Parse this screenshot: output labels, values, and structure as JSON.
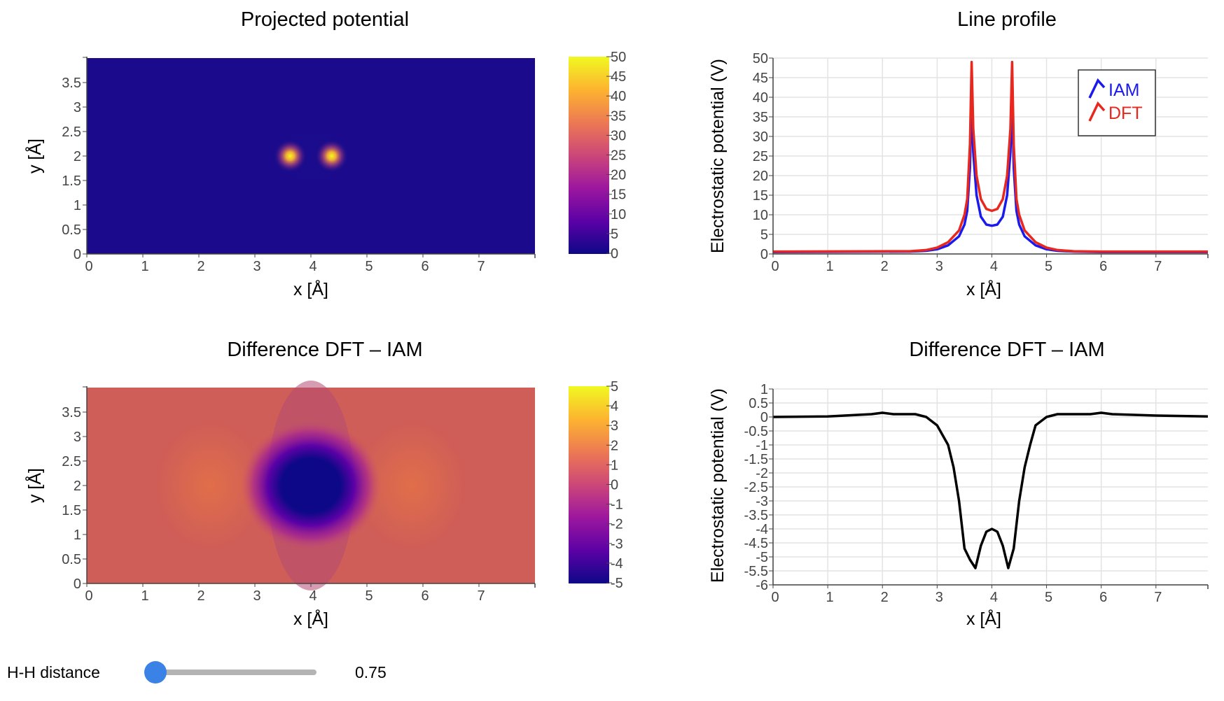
{
  "colors": {
    "iam": "#1a1aee",
    "dft": "#e8281e",
    "diff_line": "#000000",
    "grid": "#e3e3e3",
    "slider_track": "#b4b4b4",
    "slider_knob": "#3b82e6",
    "plasma_scale": [
      "#0d0887",
      "#5c01a6",
      "#9c179e",
      "#cc4778",
      "#ed7953",
      "#fdb42f",
      "#f0f921"
    ]
  },
  "slider": {
    "label": "H-H distance",
    "value": "0.75",
    "fraction": 0.0
  },
  "chart_data": [
    {
      "type": "heatmap",
      "title": "Projected potential",
      "xlabel": "x [Å]",
      "ylabel": "y [Å]",
      "xlim": [
        0,
        8
      ],
      "ylim": [
        0,
        4
      ],
      "xticks": [
        "0",
        "1",
        "2",
        "3",
        "4",
        "5",
        "6",
        "7"
      ],
      "yticks": [
        "0",
        "0.5",
        "1",
        "1.5",
        "2",
        "2.5",
        "3",
        "3.5"
      ],
      "colorbar": {
        "min": 0,
        "max": 50,
        "ticks": [
          "0",
          "5",
          "10",
          "15",
          "20",
          "25",
          "30",
          "35",
          "40",
          "45",
          "50"
        ]
      },
      "background_value": 1.5,
      "peaks": [
        {
          "x": 3.63,
          "y": 2.0,
          "value": 50
        },
        {
          "x": 4.37,
          "y": 2.0,
          "value": 50
        }
      ]
    },
    {
      "type": "line",
      "title": "Line profile",
      "xlabel": "x [Å]",
      "ylabel": "Electrostatic potential (V)",
      "xlim": [
        0,
        7.95
      ],
      "ylim": [
        0,
        50
      ],
      "xticks": [
        "0",
        "1",
        "2",
        "3",
        "4",
        "5",
        "6",
        "7"
      ],
      "yticks": [
        "0",
        "5",
        "10",
        "15",
        "20",
        "25",
        "30",
        "35",
        "40",
        "45",
        "50"
      ],
      "grid": true,
      "legend_position": "top-right",
      "series": [
        {
          "name": "IAM",
          "x": [
            0,
            2.5,
            2.8,
            3.0,
            3.2,
            3.4,
            3.5,
            3.55,
            3.6,
            3.63,
            3.66,
            3.72,
            3.8,
            3.9,
            4.0,
            4.1,
            4.2,
            4.28,
            4.34,
            4.37,
            4.4,
            4.45,
            4.5,
            4.6,
            4.8,
            5.0,
            5.2,
            5.5,
            6,
            7.95
          ],
          "y": [
            0.5,
            0.6,
            0.8,
            1.2,
            2.2,
            4.5,
            7.5,
            11,
            22,
            40,
            26,
            15,
            9.5,
            7.5,
            7.2,
            7.5,
            9.5,
            15,
            26,
            40,
            22,
            11,
            7.5,
            4.5,
            2.2,
            1.2,
            0.8,
            0.6,
            0.5,
            0.5
          ]
        },
        {
          "name": "DFT",
          "x": [
            0,
            2.5,
            2.8,
            3.0,
            3.2,
            3.4,
            3.5,
            3.55,
            3.6,
            3.63,
            3.66,
            3.72,
            3.8,
            3.9,
            4.0,
            4.1,
            4.2,
            4.28,
            4.34,
            4.37,
            4.4,
            4.45,
            4.5,
            4.6,
            4.8,
            5.0,
            5.2,
            5.5,
            6,
            7.95
          ],
          "y": [
            0.6,
            0.7,
            1.0,
            1.6,
            3.0,
            6.0,
            10,
            14,
            28,
            49,
            32,
            20,
            14,
            11.5,
            11,
            11.5,
            14,
            20,
            32,
            49,
            28,
            14,
            10,
            6.0,
            3.0,
            1.6,
            1.0,
            0.7,
            0.6,
            0.6
          ]
        }
      ]
    },
    {
      "type": "heatmap",
      "title": "Difference DFT – IAM",
      "xlabel": "x [Å]",
      "ylabel": "y [Å]",
      "xlim": [
        0,
        8
      ],
      "ylim": [
        0,
        4
      ],
      "xticks": [
        "0",
        "1",
        "2",
        "3",
        "4",
        "5",
        "6",
        "7"
      ],
      "yticks": [
        "0",
        "0.5",
        "1",
        "1.5",
        "2",
        "2.5",
        "3",
        "3.5"
      ],
      "colorbar": {
        "min": -5,
        "max": 5,
        "ticks": [
          "-5",
          "-4",
          "-3",
          "-2",
          "-1",
          "0",
          "1",
          "2",
          "3",
          "4",
          "5"
        ]
      },
      "background_value": 0.3,
      "dip": {
        "x": 4.0,
        "y": 2.0,
        "value": -5
      },
      "lobes": [
        {
          "x": 2.2,
          "y": 2.0,
          "value": 0.8
        },
        {
          "x": 5.8,
          "y": 2.0,
          "value": 0.8
        }
      ]
    },
    {
      "type": "line",
      "title": "Difference DFT – IAM",
      "xlabel": "x [Å]",
      "ylabel": "Electrostatic potential (V)",
      "xlim": [
        0,
        7.95
      ],
      "ylim": [
        -6,
        1
      ],
      "xticks": [
        "0",
        "1",
        "2",
        "3",
        "4",
        "5",
        "6",
        "7"
      ],
      "yticks": [
        "-6",
        "-5.5",
        "-5",
        "-4.5",
        "-4",
        "-3.5",
        "-3",
        "-2.5",
        "-2",
        "-1.5",
        "-1",
        "-0.5",
        "0",
        "0.5",
        "1"
      ],
      "grid": true,
      "series": [
        {
          "x": [
            0,
            1,
            1.8,
            2.0,
            2.2,
            2.6,
            2.8,
            3.0,
            3.2,
            3.3,
            3.4,
            3.5,
            3.6,
            3.7,
            3.8,
            3.9,
            4.0,
            4.1,
            4.2,
            4.3,
            4.4,
            4.5,
            4.6,
            4.7,
            4.8,
            5.0,
            5.2,
            5.4,
            5.8,
            6.0,
            6.2,
            7,
            7.95
          ],
          "y": [
            0,
            0.02,
            0.1,
            0.15,
            0.1,
            0.1,
            0,
            -0.3,
            -1.0,
            -1.8,
            -3.0,
            -4.7,
            -5.1,
            -5.4,
            -4.6,
            -4.1,
            -4.0,
            -4.1,
            -4.6,
            -5.4,
            -4.7,
            -3.0,
            -1.8,
            -1.0,
            -0.3,
            0,
            0.1,
            0.1,
            0.1,
            0.15,
            0.1,
            0.05,
            0.02
          ]
        }
      ]
    }
  ]
}
